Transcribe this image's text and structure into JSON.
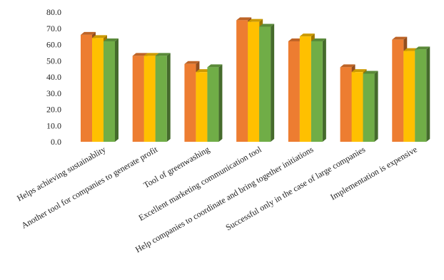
{
  "chart_data": {
    "type": "bar3d",
    "categories": [
      "Helps achieving sustainablity",
      "Another tool for companies to generate profit",
      "Tool of greenwashing",
      "Excellent marketing communication tool",
      "Help companies to coordinate and bring together initiations",
      "Successful only in the case of large companies",
      "Implementation is expensive"
    ],
    "series": [
      {
        "color": "#ed7d31",
        "values": [
          66,
          53,
          48,
          75,
          62,
          46,
          63
        ]
      },
      {
        "color": "#ffc000",
        "values": [
          64,
          53,
          43,
          74,
          65,
          43,
          56
        ]
      },
      {
        "color": "#70ad47",
        "values": [
          62,
          53,
          46,
          71,
          62,
          42,
          57
        ]
      }
    ],
    "ylim": [
      0,
      80
    ],
    "yticks": [
      {
        "value": 0,
        "label": "0.0"
      },
      {
        "value": 10,
        "label": "10.0"
      },
      {
        "value": 20,
        "label": "20.0"
      },
      {
        "value": 30,
        "label": "30.0"
      },
      {
        "value": 40,
        "label": "40.0"
      },
      {
        "value": 50,
        "label": "50.0"
      },
      {
        "value": 60,
        "label": "60.0"
      },
      {
        "value": 70,
        "label": "70.0"
      },
      {
        "value": 80,
        "label": "80.0"
      }
    ],
    "grid": false
  }
}
